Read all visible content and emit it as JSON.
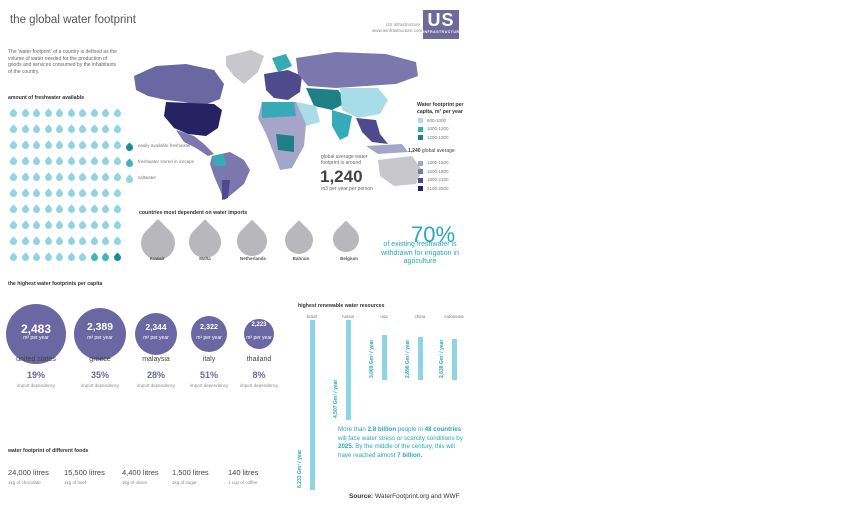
{
  "title": "the global water footprint",
  "header": {
    "line1": "US Infrastructure",
    "line2": "www.ieinfrastructure.com",
    "logo_big": "US",
    "logo_small": "INFRASTRUCTURE"
  },
  "intro": "The 'water footprint' of a country is defined as the volume of water needed for the production of goods and services consumed by the inhabitants of the country.",
  "freshwater": {
    "heading": "amount of freshwater available",
    "legend": [
      "easily available freshwater",
      "freshwater stored in icecaps",
      "saltwater"
    ],
    "colors": {
      "salt": "#8ed4e3",
      "ice": "#3fb3c6",
      "fresh": "#1a8a95"
    }
  },
  "map_legend": {
    "title": "Water footprint per capita, m³ per year",
    "items": [
      {
        "label": "600-1000",
        "color": "#a8dde8"
      },
      {
        "label": "1000-1200",
        "color": "#37aab7"
      },
      {
        "label": "1200-1300",
        "color": "#1e7f86"
      },
      {
        "label": "1300-1500",
        "color": "#a5a4c9"
      },
      {
        "label": "1500-1800",
        "color": "#7c78ae"
      },
      {
        "label": "1800-2100",
        "color": "#4f4a8c"
      },
      {
        "label": "2100-2500",
        "color": "#272261"
      }
    ],
    "average_value": "1,240",
    "average_label": "global average"
  },
  "global_avg": {
    "text": "global average water footprint is around",
    "value": "1,240",
    "unit": "m3 per year per person"
  },
  "imports": {
    "heading": "countries most dependent on water imports",
    "items": [
      {
        "name": "Kuwait",
        "pct": "87%"
      },
      {
        "name": "Malta",
        "pct": "87%"
      },
      {
        "name": "Netherlands",
        "pct": "82%"
      },
      {
        "name": "Bahrain",
        "pct": "80%"
      },
      {
        "name": "Belgium",
        "pct": "80%"
      }
    ]
  },
  "stat70": {
    "value": "70%",
    "text": "of existing freshwater is withdrawn for irrigation in agriculture"
  },
  "highest": {
    "heading": "the highest water footprints per capita",
    "unit": "m³ per year",
    "items": [
      {
        "country": "united states",
        "value": "2,483",
        "pct": "19%",
        "label": "import dependency"
      },
      {
        "country": "greece",
        "value": "2,389",
        "pct": "35%",
        "label": "import dependency"
      },
      {
        "country": "malaysia",
        "value": "2,344",
        "pct": "28%",
        "label": "import dependency"
      },
      {
        "country": "italy",
        "value": "2,322",
        "pct": "51%",
        "label": "import dependency"
      },
      {
        "country": "thailand",
        "value": "2,223",
        "pct": "8%",
        "label": "import dependency"
      }
    ]
  },
  "foods": {
    "heading": "water footprint of different foods",
    "items": [
      {
        "amount": "24,000 litres",
        "label": "1kg of chocolate"
      },
      {
        "amount": "15,500 litres",
        "label": "1kg of beef"
      },
      {
        "amount": "4,400 litres",
        "label": "1kg of olives"
      },
      {
        "amount": "1,500 litres",
        "label": "1kg of sugar"
      },
      {
        "amount": "140 litres",
        "label": "1 cup of coffee"
      }
    ]
  },
  "renewable": {
    "heading": "highest renewable water resources",
    "unit": "Gm³ / year",
    "items": [
      {
        "country": "brazil",
        "value": 8233,
        "label": "8,233 Gm³ / year"
      },
      {
        "country": "russia",
        "value": 4507,
        "label": "4,507 Gm³ / year"
      },
      {
        "country": "usa",
        "value": 3069,
        "label": "3,069 Gm³ / year"
      },
      {
        "country": "china",
        "value": 2896,
        "label": "2,896 Gm³ / year"
      },
      {
        "country": "indonesia",
        "value": 2838,
        "label": "2,838 Gm³ / year"
      }
    ]
  },
  "fact": {
    "p1": "More than ",
    "b1": "2.8 billion",
    "p2": " people in ",
    "b2": "48 countries",
    "p3": " will face water stress or scarcity conditions by ",
    "b3": "2025.",
    "p4": " By the middle of the century, this will have reached almost ",
    "b4": "7 billion."
  },
  "source": {
    "label": "Source:",
    "text": " WaterFootprint.org and WWF"
  }
}
